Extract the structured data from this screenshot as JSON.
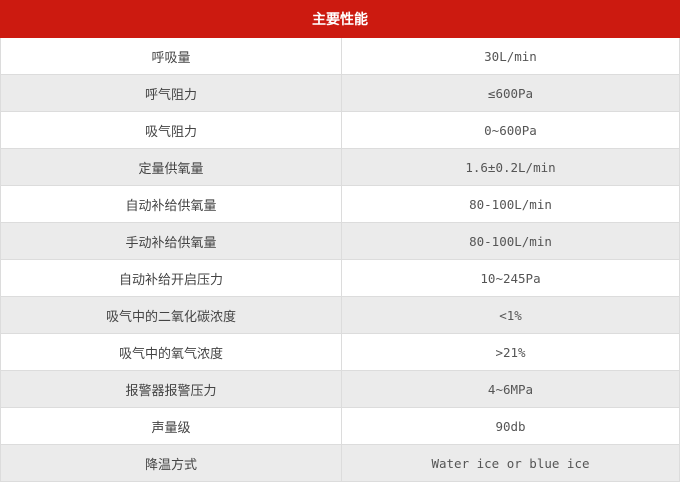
{
  "table": {
    "header": "主要性能",
    "header_color": "#cc1a10",
    "rows": [
      {
        "label": "呼吸量",
        "value": "30L/min"
      },
      {
        "label": "呼气阻力",
        "value": "≤600Pa"
      },
      {
        "label": "吸气阻力",
        "value": "0~600Pa"
      },
      {
        "label": "定量供氧量",
        "value": "1.6±0.2L/min"
      },
      {
        "label": "自动补给供氧量",
        "value": "80-100L/min"
      },
      {
        "label": "手动补给供氧量",
        "value": "80-100L/min"
      },
      {
        "label": "自动补给开启压力",
        "value": "10~245Pa"
      },
      {
        "label": "吸气中的二氧化碳浓度",
        "value": "<1%"
      },
      {
        "label": "吸气中的氧气浓度",
        "value": ">21%"
      },
      {
        "label": "报警器报警压力",
        "value": "4~6MPa"
      },
      {
        "label": "声量级",
        "value": "90db"
      },
      {
        "label": "降温方式",
        "value": "Water ice or blue ice"
      }
    ]
  }
}
